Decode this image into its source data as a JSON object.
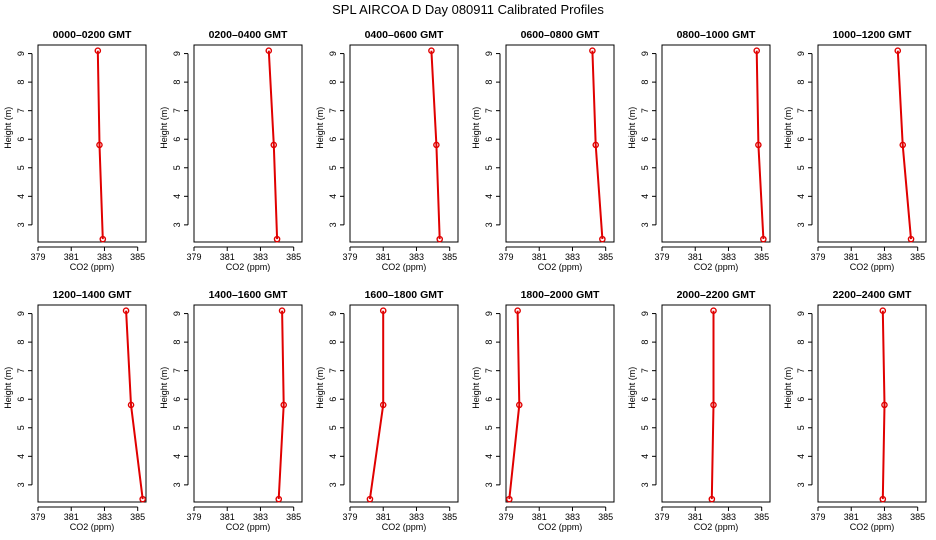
{
  "title": "SPL AIRCOA D  Day 080911  Calibrated Profiles",
  "colors": {
    "series": "#e00000",
    "frame": "#000000",
    "background": "#ffffff"
  },
  "chart_data": [
    {
      "type": "line",
      "title": "0000–0200 GMT",
      "xlabel": "CO2 (ppm)",
      "ylabel": "Height (m)",
      "xlim": [
        379,
        385.5
      ],
      "ylim": [
        2.4,
        9.3
      ],
      "xticks": [
        379,
        381,
        383,
        385
      ],
      "yticks": [
        3,
        4,
        5,
        6,
        7,
        8,
        9
      ],
      "x": [
        382.6,
        382.7,
        382.9
      ],
      "y": [
        9.1,
        5.8,
        2.5
      ]
    },
    {
      "type": "line",
      "title": "0200–0400 GMT",
      "xlabel": "CO2 (ppm)",
      "ylabel": "Height (m)",
      "xlim": [
        379,
        385.5
      ],
      "ylim": [
        2.4,
        9.3
      ],
      "xticks": [
        379,
        381,
        383,
        385
      ],
      "yticks": [
        3,
        4,
        5,
        6,
        7,
        8,
        9
      ],
      "x": [
        383.5,
        383.8,
        384.0
      ],
      "y": [
        9.1,
        5.8,
        2.5
      ]
    },
    {
      "type": "line",
      "title": "0400–0600 GMT",
      "xlabel": "CO2 (ppm)",
      "ylabel": "Height (m)",
      "xlim": [
        379,
        385.5
      ],
      "ylim": [
        2.4,
        9.3
      ],
      "xticks": [
        379,
        381,
        383,
        385
      ],
      "yticks": [
        3,
        4,
        5,
        6,
        7,
        8,
        9
      ],
      "x": [
        383.9,
        384.2,
        384.4
      ],
      "y": [
        9.1,
        5.8,
        2.5
      ]
    },
    {
      "type": "line",
      "title": "0600–0800 GMT",
      "xlabel": "CO2 (ppm)",
      "ylabel": "Height (m)",
      "xlim": [
        379,
        385.5
      ],
      "ylim": [
        2.4,
        9.3
      ],
      "xticks": [
        379,
        381,
        383,
        385
      ],
      "yticks": [
        3,
        4,
        5,
        6,
        7,
        8,
        9
      ],
      "x": [
        384.2,
        384.4,
        384.8
      ],
      "y": [
        9.1,
        5.8,
        2.5
      ]
    },
    {
      "type": "line",
      "title": "0800–1000 GMT",
      "xlabel": "CO2 (ppm)",
      "ylabel": "Height (m)",
      "xlim": [
        379,
        385.5
      ],
      "ylim": [
        2.4,
        9.3
      ],
      "xticks": [
        379,
        381,
        383,
        385
      ],
      "yticks": [
        3,
        4,
        5,
        6,
        7,
        8,
        9
      ],
      "x": [
        384.7,
        384.8,
        385.1
      ],
      "y": [
        9.1,
        5.8,
        2.5
      ]
    },
    {
      "type": "line",
      "title": "1000–1200 GMT",
      "xlabel": "CO2 (ppm)",
      "ylabel": "Height (m)",
      "xlim": [
        379,
        385.5
      ],
      "ylim": [
        2.4,
        9.3
      ],
      "xticks": [
        379,
        381,
        383,
        385
      ],
      "yticks": [
        3,
        4,
        5,
        6,
        7,
        8,
        9
      ],
      "x": [
        383.8,
        384.1,
        384.6
      ],
      "y": [
        9.1,
        5.8,
        2.5
      ]
    },
    {
      "type": "line",
      "title": "1200–1400 GMT",
      "xlabel": "CO2 (ppm)",
      "ylabel": "Height (m)",
      "xlim": [
        379,
        385.5
      ],
      "ylim": [
        2.4,
        9.3
      ],
      "xticks": [
        379,
        381,
        383,
        385
      ],
      "yticks": [
        3,
        4,
        5,
        6,
        7,
        8,
        9
      ],
      "x": [
        384.3,
        384.6,
        385.3
      ],
      "y": [
        9.1,
        5.8,
        2.5
      ]
    },
    {
      "type": "line",
      "title": "1400–1600 GMT",
      "xlabel": "CO2 (ppm)",
      "ylabel": "Height (m)",
      "xlim": [
        379,
        385.5
      ],
      "ylim": [
        2.4,
        9.3
      ],
      "xticks": [
        379,
        381,
        383,
        385
      ],
      "yticks": [
        3,
        4,
        5,
        6,
        7,
        8,
        9
      ],
      "x": [
        384.3,
        384.4,
        384.1
      ],
      "y": [
        9.1,
        5.8,
        2.5
      ]
    },
    {
      "type": "line",
      "title": "1600–1800 GMT",
      "xlabel": "CO2 (ppm)",
      "ylabel": "Height (m)",
      "xlim": [
        379,
        385.5
      ],
      "ylim": [
        2.4,
        9.3
      ],
      "xticks": [
        379,
        381,
        383,
        385
      ],
      "yticks": [
        3,
        4,
        5,
        6,
        7,
        8,
        9
      ],
      "x": [
        381.0,
        381.0,
        380.2
      ],
      "y": [
        9.1,
        5.8,
        2.5
      ]
    },
    {
      "type": "line",
      "title": "1800–2000 GMT",
      "xlabel": "CO2 (ppm)",
      "ylabel": "Height (m)",
      "xlim": [
        379,
        385.5
      ],
      "ylim": [
        2.4,
        9.3
      ],
      "xticks": [
        379,
        381,
        383,
        385
      ],
      "yticks": [
        3,
        4,
        5,
        6,
        7,
        8,
        9
      ],
      "x": [
        379.7,
        379.8,
        379.2
      ],
      "y": [
        9.1,
        5.8,
        2.5
      ]
    },
    {
      "type": "line",
      "title": "2000–2200 GMT",
      "xlabel": "CO2 (ppm)",
      "ylabel": "Height (m)",
      "xlim": [
        379,
        385.5
      ],
      "ylim": [
        2.4,
        9.3
      ],
      "xticks": [
        379,
        381,
        383,
        385
      ],
      "yticks": [
        3,
        4,
        5,
        6,
        7,
        8,
        9
      ],
      "x": [
        382.1,
        382.1,
        382.0
      ],
      "y": [
        9.1,
        5.8,
        2.5
      ]
    },
    {
      "type": "line",
      "title": "2200–2400 GMT",
      "xlabel": "CO2 (ppm)",
      "ylabel": "Height (m)",
      "xlim": [
        379,
        385.5
      ],
      "ylim": [
        2.4,
        9.3
      ],
      "xticks": [
        379,
        381,
        383,
        385
      ],
      "yticks": [
        3,
        4,
        5,
        6,
        7,
        8,
        9
      ],
      "x": [
        382.9,
        383.0,
        382.9
      ],
      "y": [
        9.1,
        5.8,
        2.5
      ]
    }
  ]
}
